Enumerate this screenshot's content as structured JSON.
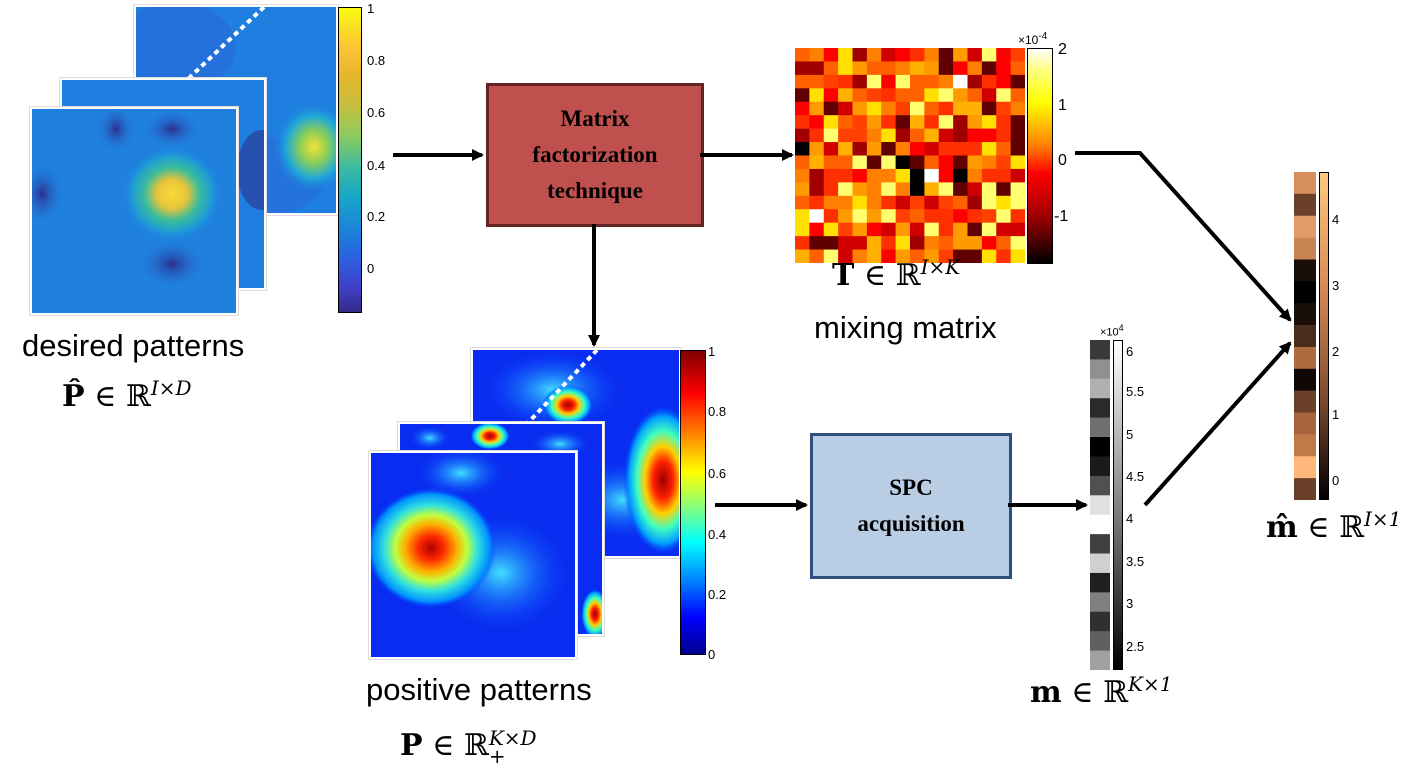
{
  "desired": {
    "caption": "desired patterns",
    "math_symbol": "P̂",
    "math_in": "∈",
    "math_set": "ℝ",
    "math_sup": "I×D",
    "colorbar_ticks": [
      "1",
      "0.8",
      "0.6",
      "0.4",
      "0.2",
      "0"
    ]
  },
  "mf_box": {
    "line1": "Matrix",
    "line2": "factorization",
    "line3": "technique",
    "fill": "#c0504d",
    "border": "#632523"
  },
  "mixing": {
    "caption": "mixing matrix",
    "math_symbol": "T",
    "math_in": "∈",
    "math_set": "ℝ",
    "math_sup": "I×K",
    "colorbar_exponent": "×10",
    "colorbar_exponent_power": "-4",
    "colorbar_ticks": [
      "2",
      "1",
      "0",
      "-1"
    ]
  },
  "positive": {
    "caption": "positive patterns",
    "math_symbol": "P",
    "math_in": "∈",
    "math_set": "ℝ",
    "math_sup": "K×D",
    "math_sub": "+",
    "colorbar_ticks": [
      "1",
      "0.8",
      "0.6",
      "0.4",
      "0.2",
      "0"
    ]
  },
  "spc_box": {
    "line1": "SPC",
    "line2": "acquisition",
    "fill": "#b9cde5",
    "border": "#2f4f7f"
  },
  "measurement": {
    "math_symbol": "m",
    "math_in": "∈",
    "math_set": "ℝ",
    "math_sup": "K×1",
    "colorbar_exponent": "×10",
    "colorbar_exponent_power": "4",
    "colorbar_ticks": [
      "6",
      "5.5",
      "5",
      "4.5",
      "4",
      "3.5",
      "3",
      "2.5"
    ]
  },
  "estimate": {
    "math_symbol": "m̂",
    "math_in": "∈",
    "math_set": "ℝ",
    "math_sup": "I×1",
    "colorbar_ticks": [
      "4",
      "3",
      "2",
      "1",
      "0"
    ]
  },
  "colors": {
    "arrow": "#000000",
    "parula_high": "#f9fb0e",
    "parula_low": "#352a87",
    "jet_high": "#800000",
    "jet_low": "#00008f"
  }
}
